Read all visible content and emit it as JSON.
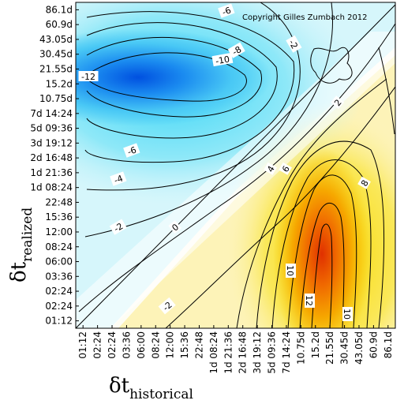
{
  "chart_data": {
    "type": "heatmap",
    "copyright": "Copyright Gilles Zumbach 2012",
    "xlabel_main": "δt",
    "xlabel_sub": "historical",
    "ylabel_main": "δt",
    "ylabel_sub": "realized",
    "x_ticks": [
      "01:12",
      "02:24",
      "02:24",
      "03:36",
      "06:00",
      "08:24",
      "12:00",
      "15:36",
      "22:48",
      "1d 08:24",
      "1d 21:36",
      "2d 16:48",
      "3d 19:12",
      "5d 09:36",
      "7d 14:24",
      "10.75d",
      "15.2d",
      "21.55d",
      "30.45d",
      "43.05d",
      "60.9d",
      "86.1d"
    ],
    "y_ticks": [
      "86.1d",
      "60.9d",
      "43.05d",
      "30.45d",
      "21.55d",
      "15.2d",
      "10.75d",
      "7d 14:24",
      "5d 09:36",
      "3d 19:12",
      "2d 16:48",
      "1d 21:36",
      "1d 08:24",
      "22:48",
      "15:36",
      "12:00",
      "08:24",
      "06:00",
      "03:36",
      "02:24",
      "02:24",
      "01:12"
    ],
    "contour_labels": [
      "-6",
      "-8",
      "-10",
      "-12",
      "-6",
      "-4",
      "-2",
      "0",
      "-2",
      "-2",
      "2",
      "4",
      "6",
      "8",
      "10",
      "12",
      "10"
    ],
    "z_range": [
      -13,
      13
    ],
    "colormap": {
      "negative": "cyan-blue",
      "zero": "#ffffff",
      "positive": "yellow-orange-red"
    }
  }
}
